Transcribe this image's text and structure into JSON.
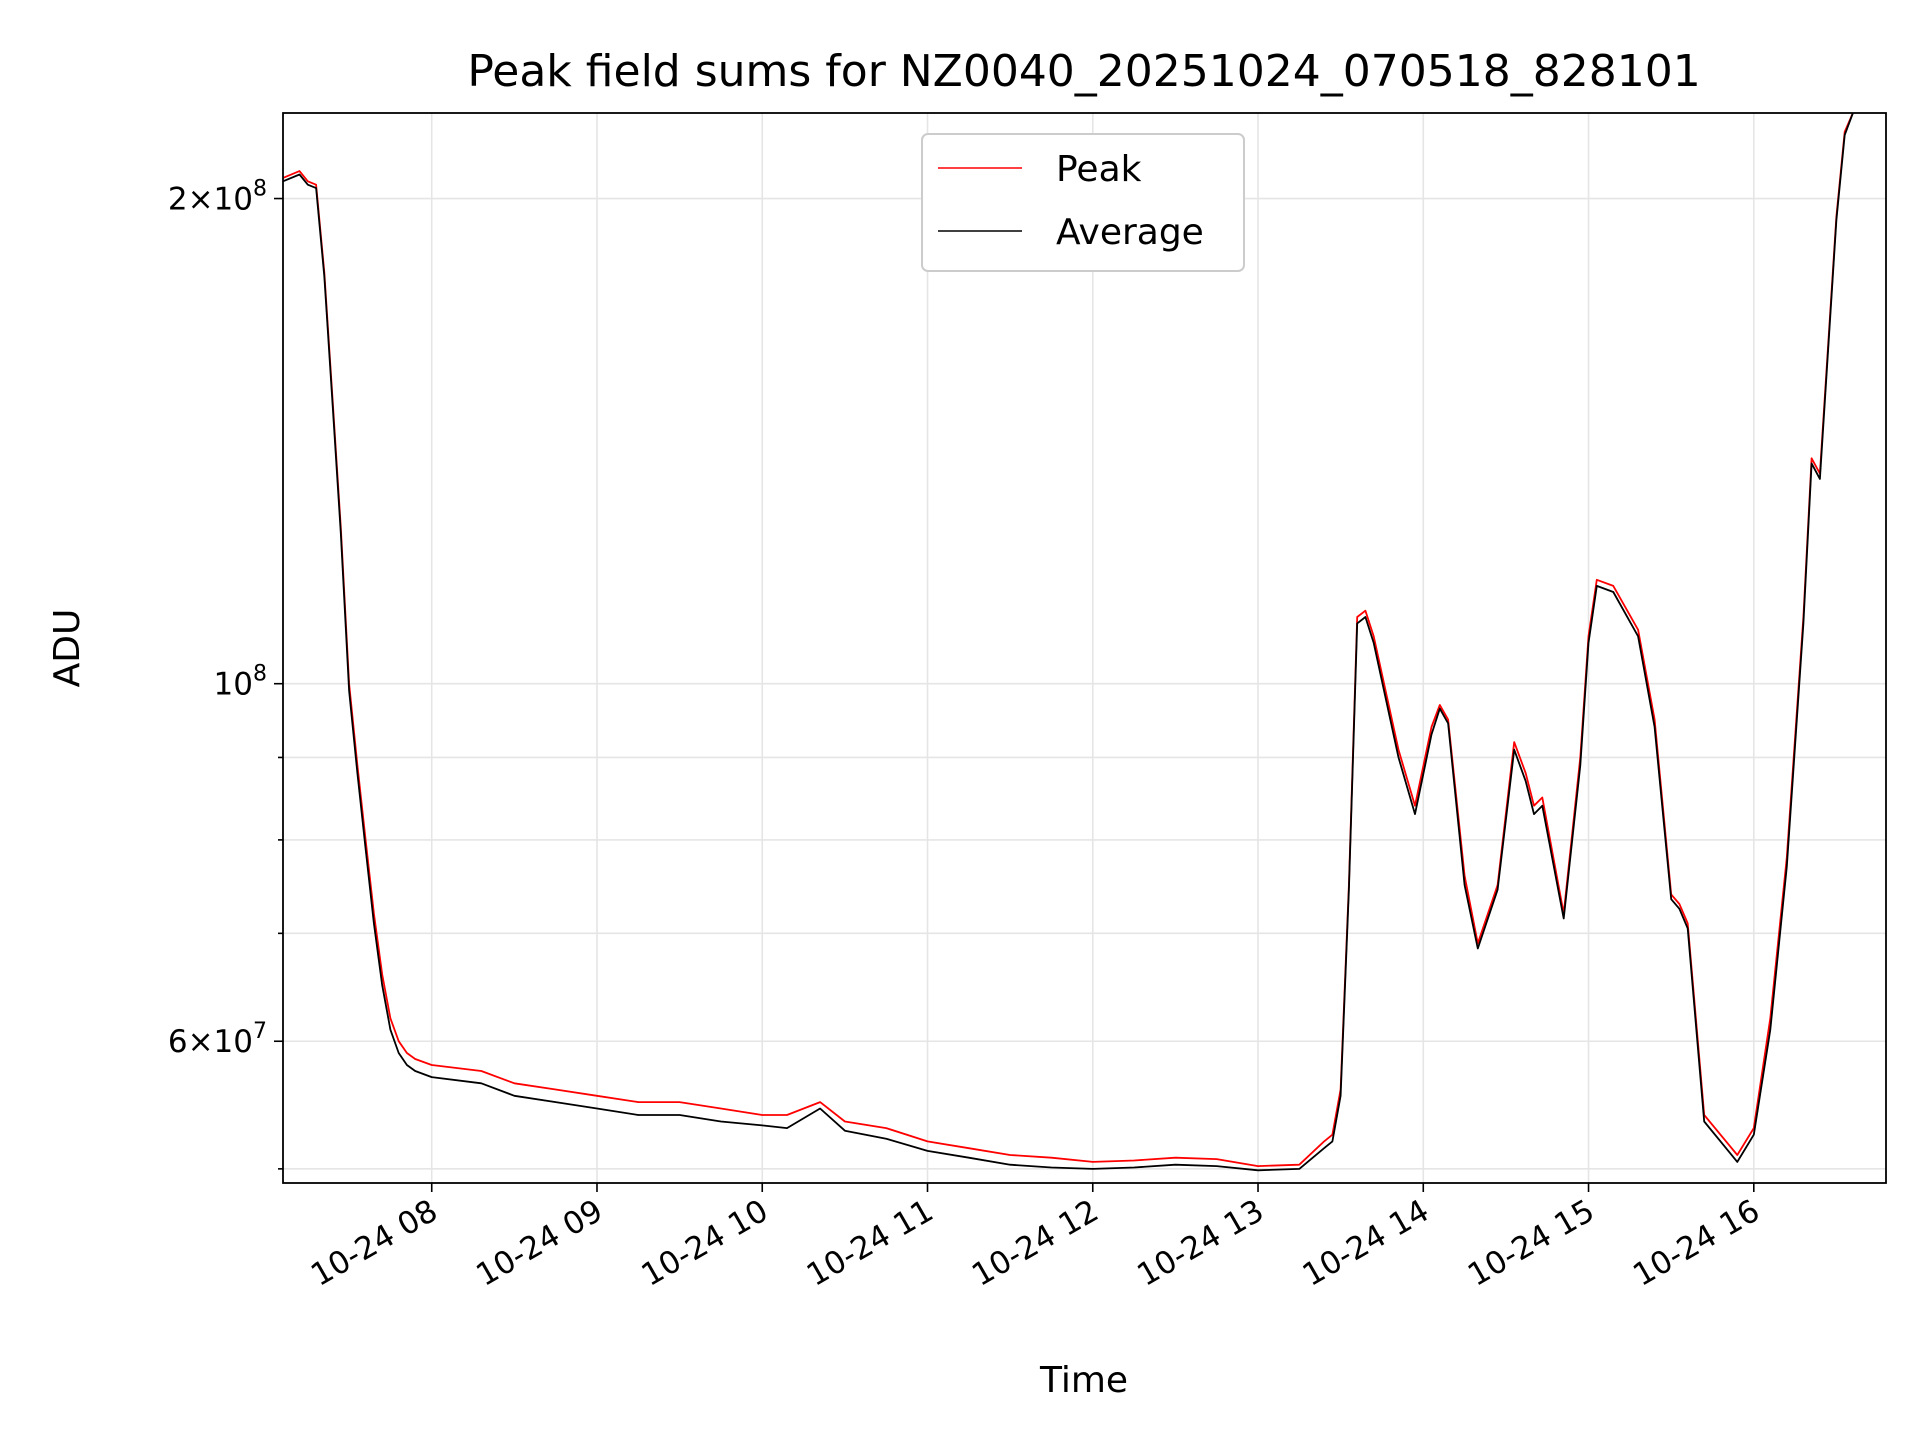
{
  "chart_data": {
    "type": "line",
    "title": "Peak field sums for NZ0040_20251024_070518_828101",
    "xlabel": "Time",
    "ylabel": "ADU",
    "yscale": "log",
    "ylim": [
      49000000,
      226000000
    ],
    "xlim_hours": [
      7.1,
      16.8
    ],
    "grid": true,
    "legend_position": "upper-center",
    "x_ticks": [
      {
        "value": 8,
        "label": "10-24 08"
      },
      {
        "value": 9,
        "label": "10-24 09"
      },
      {
        "value": 10,
        "label": "10-24 10"
      },
      {
        "value": 11,
        "label": "10-24 11"
      },
      {
        "value": 12,
        "label": "10-24 12"
      },
      {
        "value": 13,
        "label": "10-24 13"
      },
      {
        "value": 14,
        "label": "10-24 14"
      },
      {
        "value": 15,
        "label": "10-24 15"
      },
      {
        "value": 16,
        "label": "10-24 16"
      }
    ],
    "y_ticks": [
      {
        "value": 60000000,
        "mantissa": "6",
        "exponent": "7"
      },
      {
        "value": 100000000,
        "mantissa": "",
        "exponent": "8"
      },
      {
        "value": 200000000,
        "mantissa": "2",
        "exponent": "8"
      }
    ],
    "y_minor_ticks": [
      50000000,
      70000000,
      80000000,
      90000000
    ],
    "series": [
      {
        "name": "Peak",
        "color": "#ff0000",
        "x": [
          7.1,
          7.2,
          7.25,
          7.3,
          7.35,
          7.4,
          7.45,
          7.5,
          7.55,
          7.6,
          7.65,
          7.7,
          7.75,
          7.8,
          7.85,
          7.9,
          8.0,
          8.3,
          8.5,
          8.75,
          9.0,
          9.25,
          9.5,
          9.75,
          10.0,
          10.15,
          10.35,
          10.5,
          10.75,
          11.0,
          11.25,
          11.5,
          11.75,
          12.0,
          12.25,
          12.5,
          12.75,
          13.0,
          13.25,
          13.4,
          13.45,
          13.5,
          13.55,
          13.6,
          13.65,
          13.7,
          13.85,
          13.95,
          14.05,
          14.1,
          14.15,
          14.25,
          14.33,
          14.45,
          14.55,
          14.62,
          14.67,
          14.72,
          14.85,
          14.95,
          15.0,
          15.05,
          15.15,
          15.3,
          15.4,
          15.5,
          15.55,
          15.6,
          15.7,
          15.9,
          16.0,
          16.1,
          16.2,
          16.3,
          16.35,
          16.4,
          16.5,
          16.55,
          16.6
        ],
        "values": [
          206000000,
          208000000,
          205000000,
          204000000,
          180000000,
          150000000,
          125000000,
          100000000,
          89000000,
          80000000,
          72000000,
          66000000,
          62000000,
          60000000,
          59000000,
          58500000,
          58000000,
          57500000,
          56500000,
          56000000,
          55500000,
          55000000,
          55000000,
          54500000,
          54000000,
          54000000,
          55000000,
          53500000,
          53000000,
          52000000,
          51500000,
          51000000,
          50800000,
          50500000,
          50600000,
          50800000,
          50700000,
          50200000,
          50300000,
          52000000,
          52500000,
          56000000,
          75000000,
          110000000,
          111000000,
          107000000,
          91000000,
          84000000,
          94000000,
          97000000,
          95000000,
          76000000,
          69000000,
          75000000,
          92000000,
          88000000,
          84000000,
          85000000,
          72000000,
          90000000,
          107000000,
          116000000,
          115000000,
          108000000,
          95000000,
          74000000,
          73000000,
          71000000,
          54000000,
          51000000,
          53000000,
          62000000,
          78000000,
          110000000,
          138000000,
          135000000,
          195000000,
          220000000,
          226000000
        ]
      },
      {
        "name": "Average",
        "color": "#000000",
        "x": [
          7.1,
          7.2,
          7.25,
          7.3,
          7.35,
          7.4,
          7.45,
          7.5,
          7.55,
          7.6,
          7.65,
          7.7,
          7.75,
          7.8,
          7.85,
          7.9,
          8.0,
          8.3,
          8.5,
          8.75,
          9.0,
          9.25,
          9.5,
          9.75,
          10.0,
          10.15,
          10.35,
          10.5,
          10.75,
          11.0,
          11.25,
          11.5,
          11.75,
          12.0,
          12.25,
          12.5,
          12.75,
          13.0,
          13.25,
          13.4,
          13.45,
          13.5,
          13.55,
          13.6,
          13.65,
          13.7,
          13.85,
          13.95,
          14.05,
          14.1,
          14.15,
          14.25,
          14.33,
          14.45,
          14.55,
          14.62,
          14.67,
          14.72,
          14.85,
          14.95,
          15.0,
          15.05,
          15.15,
          15.3,
          15.4,
          15.5,
          15.55,
          15.6,
          15.7,
          15.9,
          16.0,
          16.1,
          16.2,
          16.3,
          16.35,
          16.4,
          16.5,
          16.55,
          16.6
        ],
        "values": [
          205000000,
          207000000,
          204000000,
          203000000,
          179000000,
          149000000,
          124000000,
          99000000,
          88000000,
          79000000,
          71000000,
          65000000,
          61000000,
          59000000,
          58000000,
          57500000,
          57000000,
          56500000,
          55500000,
          55000000,
          54500000,
          54000000,
          54000000,
          53500000,
          53200000,
          53000000,
          54500000,
          52800000,
          52200000,
          51300000,
          50800000,
          50300000,
          50100000,
          50000000,
          50100000,
          50300000,
          50200000,
          49900000,
          50000000,
          51500000,
          52000000,
          55500000,
          74500000,
          109000000,
          110000000,
          106000000,
          90000000,
          83000000,
          93000000,
          96500000,
          94500000,
          75000000,
          68500000,
          74500000,
          91000000,
          87000000,
          83000000,
          84000000,
          71500000,
          89000000,
          106000000,
          115000000,
          114000000,
          107000000,
          94000000,
          73500000,
          72500000,
          70500000,
          53500000,
          50500000,
          52500000,
          61000000,
          77000000,
          109000000,
          137000000,
          134000000,
          194000000,
          219000000,
          226000000
        ]
      }
    ]
  }
}
